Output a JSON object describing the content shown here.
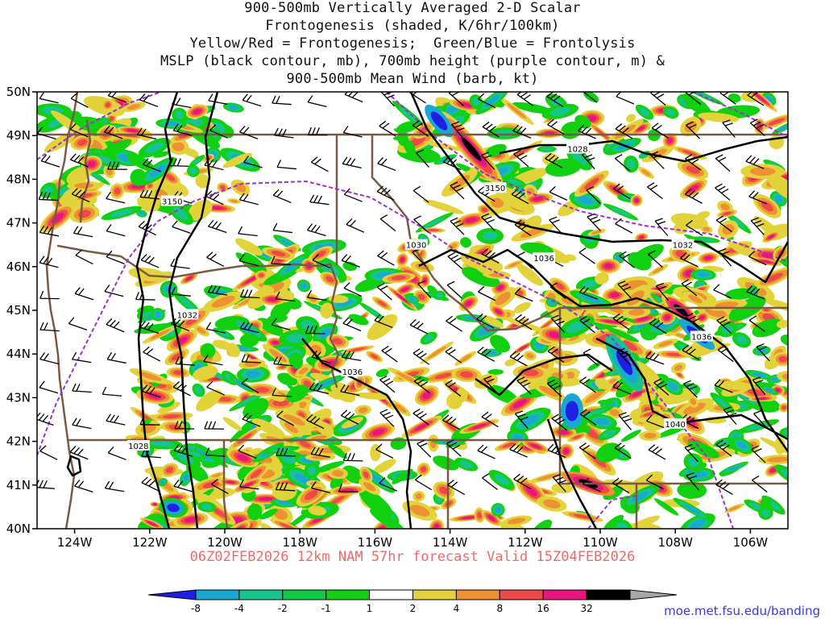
{
  "title": {
    "lines": [
      "900-500mb Vertically Averaged 2-D Scalar",
      "Frontogenesis (shaded, K/6hr/100km)",
      "Yellow/Red = Frontogenesis;  Green/Blue = Frontolysis",
      "MSLP (black contour, mb), 700mb height (purple contour, m) &",
      "900-500mb Mean Wind (barb, kt)"
    ]
  },
  "subtitle": "06Z02FEB2026 12km NAM 57hr forecast Valid 15Z04FEB2026",
  "credit": "moe.met.fsu.edu/banding",
  "map": {
    "lon_range": [
      -125,
      -105
    ],
    "lat_range": [
      40,
      50
    ],
    "lat_ticks": [
      {
        "v": 50,
        "label": "50N"
      },
      {
        "v": 49,
        "label": "49N"
      },
      {
        "v": 48,
        "label": "48N"
      },
      {
        "v": 47,
        "label": "47N"
      },
      {
        "v": 46,
        "label": "46N"
      },
      {
        "v": 45,
        "label": "45N"
      },
      {
        "v": 44,
        "label": "44N"
      },
      {
        "v": 43,
        "label": "43N"
      },
      {
        "v": 42,
        "label": "42N"
      },
      {
        "v": 41,
        "label": "41N"
      },
      {
        "v": 40,
        "label": "40N"
      }
    ],
    "lon_ticks": [
      {
        "v": -124,
        "label": "124W"
      },
      {
        "v": -122,
        "label": "122W"
      },
      {
        "v": -120,
        "label": "120W"
      },
      {
        "v": -118,
        "label": "118W"
      },
      {
        "v": -116,
        "label": "116W"
      },
      {
        "v": -114,
        "label": "114W"
      },
      {
        "v": -112,
        "label": "112W"
      },
      {
        "v": -110,
        "label": "110W"
      },
      {
        "v": -108,
        "label": "108W"
      },
      {
        "v": -106,
        "label": "106W"
      }
    ],
    "mslp_labels": [
      {
        "text": "1028",
        "lon": -110.6,
        "lat": 48.7
      },
      {
        "text": "1032",
        "lon": -107.8,
        "lat": 46.5
      },
      {
        "text": "1036",
        "lon": -111.5,
        "lat": 46.2
      },
      {
        "text": "1030",
        "lon": -114.9,
        "lat": 46.5
      },
      {
        "text": "1032",
        "lon": -121.0,
        "lat": 44.9
      },
      {
        "text": "1036",
        "lon": -116.6,
        "lat": 43.6
      },
      {
        "text": "1036",
        "lon": -107.3,
        "lat": 44.4
      },
      {
        "text": "1040",
        "lon": -108.0,
        "lat": 42.4
      },
      {
        "text": "1028",
        "lon": -122.3,
        "lat": 41.9
      }
    ],
    "height_labels": [
      {
        "text": "3150",
        "lon": -121.4,
        "lat": 47.5
      },
      {
        "text": "3150",
        "lon": -112.8,
        "lat": 47.8
      }
    ]
  },
  "colorbar": {
    "labels": [
      "-8",
      "-4",
      "-2",
      "-1",
      "1",
      "2",
      "4",
      "8",
      "16",
      "32"
    ],
    "colors": [
      "#1f1fe6",
      "#19a8d2",
      "#15c48f",
      "#0fca44",
      "#10d010",
      "#ffffff",
      "#e3d33b",
      "#f09035",
      "#f04848",
      "#e8157e",
      "#000000",
      "#a8a8a8"
    ]
  },
  "legend_colors": {
    "blue": "#1f1fe6",
    "cyan": "#19a8d2",
    "teal": "#15c48f",
    "green": "#10d010",
    "yellow": "#e3d33b",
    "orange": "#f09035",
    "red": "#f04848",
    "magenta": "#e8157e",
    "black": "#000000",
    "gray": "#a8a8a8",
    "border": "#7b5a45",
    "height_contour": "#9b2fd1"
  }
}
